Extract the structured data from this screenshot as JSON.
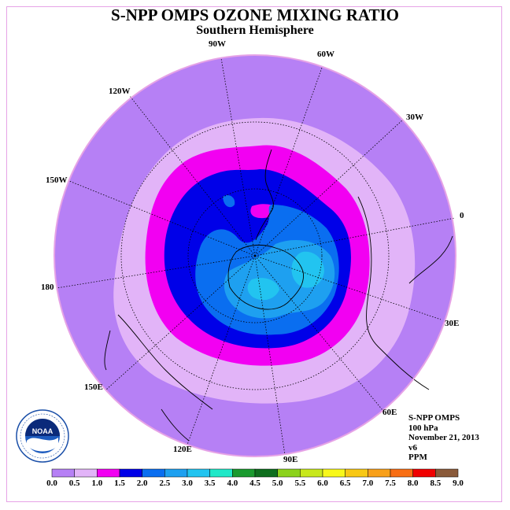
{
  "title": "S-NPP OMPS OZONE MIXING RATIO",
  "subtitle": "Southern Hemisphere",
  "longitude_labels": [
    "90W",
    "60W",
    "30W",
    "0",
    "30E",
    "60E",
    "90E",
    "120E",
    "150E",
    "180",
    "150W",
    "120W"
  ],
  "info": {
    "instrument": "S-NPP OMPS",
    "level": "100 hPa",
    "date": "November 21, 2013",
    "version": "v6",
    "units": "PPM"
  },
  "legend": {
    "ticks": [
      "0.0",
      "0.5",
      "1.0",
      "1.5",
      "2.0",
      "2.5",
      "3.0",
      "3.5",
      "4.0",
      "4.5",
      "5.0",
      "5.5",
      "6.0",
      "6.5",
      "7.0",
      "7.5",
      "8.0",
      "8.5",
      "9.0"
    ],
    "colors": [
      "#b680f5",
      "#e2b4f8",
      "#f200f2",
      "#0000e8",
      "#0a6ef0",
      "#1ea0f0",
      "#22c4f0",
      "#20e8c8",
      "#1a9a2e",
      "#0e6e1e",
      "#8cd21c",
      "#c8e81c",
      "#f8f81a",
      "#f8c814",
      "#f8a01a",
      "#f86e14",
      "#f00000",
      "#8a5a3a"
    ]
  },
  "colors": {
    "land_outline": "#000000",
    "grid": "#000000",
    "frame": "#e6a3e6"
  },
  "logo_icon": "noaa-logo"
}
